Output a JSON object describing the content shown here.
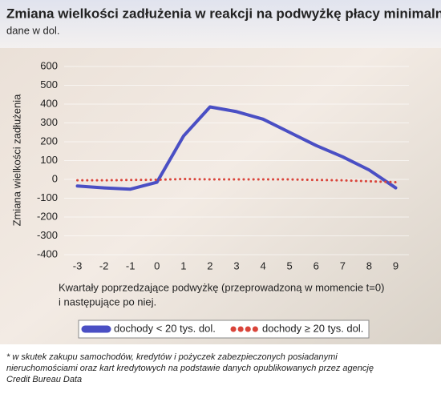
{
  "chart_data": {
    "type": "line",
    "title": "Zmiana wielkości zadłużenia w reakcji na podwyżkę płacy minimalnej *",
    "subtitle": "dane w dol.",
    "y_label": "Zmiana wielkości zadłużenia",
    "x_label": [
      "Kwartały poprzedzające podwyżkę (przeprowadzoną w momencie t=0)",
      "i następujące po niej."
    ],
    "x": [
      -3,
      -2,
      -1,
      0,
      1,
      2,
      3,
      4,
      5,
      6,
      7,
      8,
      9
    ],
    "series": [
      {
        "name": "dochody < 20 tys. dol.",
        "color": "#4a4fc4",
        "style": "solid",
        "values": [
          -35,
          -45,
          -52,
          -15,
          230,
          385,
          360,
          320,
          250,
          180,
          120,
          50,
          -45
        ]
      },
      {
        "name": "dochody ≥ 20 tys. dol.",
        "color": "#d9443a",
        "style": "dotted",
        "values": [
          -5,
          -5,
          -3,
          -2,
          2,
          0,
          0,
          0,
          0,
          -3,
          -5,
          -10,
          -15
        ]
      }
    ],
    "xlim": [
      -3.5,
      9.5
    ],
    "xticks": [
      -3,
      -2,
      -1,
      0,
      1,
      2,
      3,
      4,
      5,
      6,
      7,
      8,
      9
    ],
    "ylim": [
      -400,
      600
    ],
    "yticks": [
      -400,
      -300,
      -200,
      -100,
      0,
      100,
      200,
      300,
      400,
      500,
      600
    ],
    "grid": true,
    "footnote": [
      "* w skutek zakupu samochodów, kredytów i pożyczek zabezpieczonych posiadanymi",
      "nieruchomościami oraz kart kredytowych na podstawie danych opublikowanych przez agencję",
      "Credit Bureau Data"
    ]
  }
}
